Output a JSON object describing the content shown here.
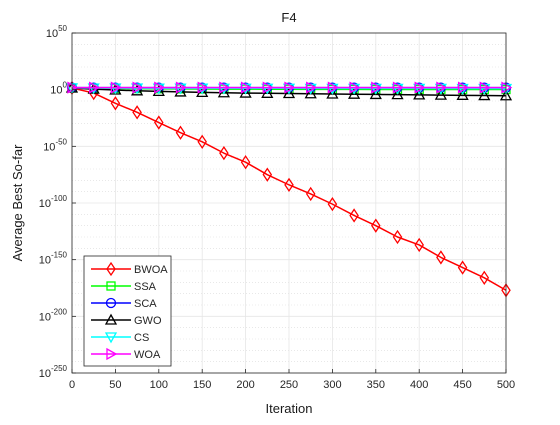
{
  "chart_data": {
    "type": "line",
    "title": "F4",
    "xlabel": "Iteration",
    "ylabel": "Average Best So-far",
    "xlim": [
      0,
      500
    ],
    "y_scale": "log",
    "ylim_exponent": [
      -250,
      50
    ],
    "x_ticks": [
      0,
      50,
      100,
      150,
      200,
      250,
      300,
      350,
      400,
      450,
      500
    ],
    "y_tick_exponents": [
      50,
      0,
      -50,
      -100,
      -150,
      -200,
      -250
    ],
    "y_tick_base": "10",
    "grid": true,
    "minor_grid": true,
    "legend_position": "bottom-left",
    "marker_x": [
      0,
      25,
      50,
      75,
      100,
      125,
      150,
      175,
      200,
      225,
      250,
      275,
      300,
      325,
      350,
      375,
      400,
      425,
      450,
      475,
      500
    ],
    "series": [
      {
        "name": "BWOA",
        "color": "#ff0000",
        "marker": "diamond",
        "log10_values": [
          1.5,
          -3,
          -12,
          -20,
          -29,
          -38,
          -46,
          -56,
          -64,
          -75,
          -84,
          -92,
          -101,
          -111,
          -120,
          -130,
          -137,
          -148,
          -157,
          -166,
          -177
        ]
      },
      {
        "name": "SSA",
        "color": "#00ff00",
        "marker": "square",
        "log10_values": [
          1.5,
          1.2,
          1,
          0.9,
          0.8,
          0.7,
          0.6,
          0.5,
          0.5,
          0.4,
          0.4,
          0.3,
          0.3,
          0.3,
          0.2,
          0.2,
          0.2,
          0.2,
          0.1,
          0.1,
          0.1
        ]
      },
      {
        "name": "SCA",
        "color": "#0000ff",
        "marker": "circle",
        "log10_values": [
          1.8,
          1.8,
          1.8,
          1.8,
          1.8,
          1.8,
          1.8,
          1.8,
          1.8,
          1.8,
          1.8,
          1.8,
          1.8,
          1.8,
          1.8,
          1.8,
          1.8,
          1.8,
          1.8,
          1.8,
          1.8
        ]
      },
      {
        "name": "GWO",
        "color": "#000000",
        "marker": "triangle-up",
        "log10_values": [
          1.5,
          0.5,
          -0.3,
          -1,
          -1.5,
          -2,
          -2.4,
          -2.7,
          -3,
          -3.2,
          -3.4,
          -3.6,
          -3.8,
          -4,
          -4.2,
          -4.4,
          -4.6,
          -4.8,
          -5,
          -5.2,
          -5.4
        ]
      },
      {
        "name": "CS",
        "color": "#00ffff",
        "marker": "triangle-down",
        "log10_values": [
          1.6,
          1.5,
          1.4,
          1.4,
          1.3,
          1.3,
          1.3,
          1.2,
          1.2,
          1.2,
          1.2,
          1.1,
          1.1,
          1.1,
          1.1,
          1.1,
          1.1,
          1.1,
          1.0,
          1.0,
          1.0
        ]
      },
      {
        "name": "WOA",
        "color": "#ff00ff",
        "marker": "triangle-right",
        "log10_values": [
          1.8,
          1.8,
          1.8,
          1.8,
          1.8,
          1.8,
          1.8,
          1.8,
          1.8,
          1.8,
          1.8,
          1.8,
          1.8,
          1.8,
          1.8,
          1.8,
          1.8,
          1.8,
          1.8,
          1.8,
          1.8
        ]
      }
    ]
  }
}
